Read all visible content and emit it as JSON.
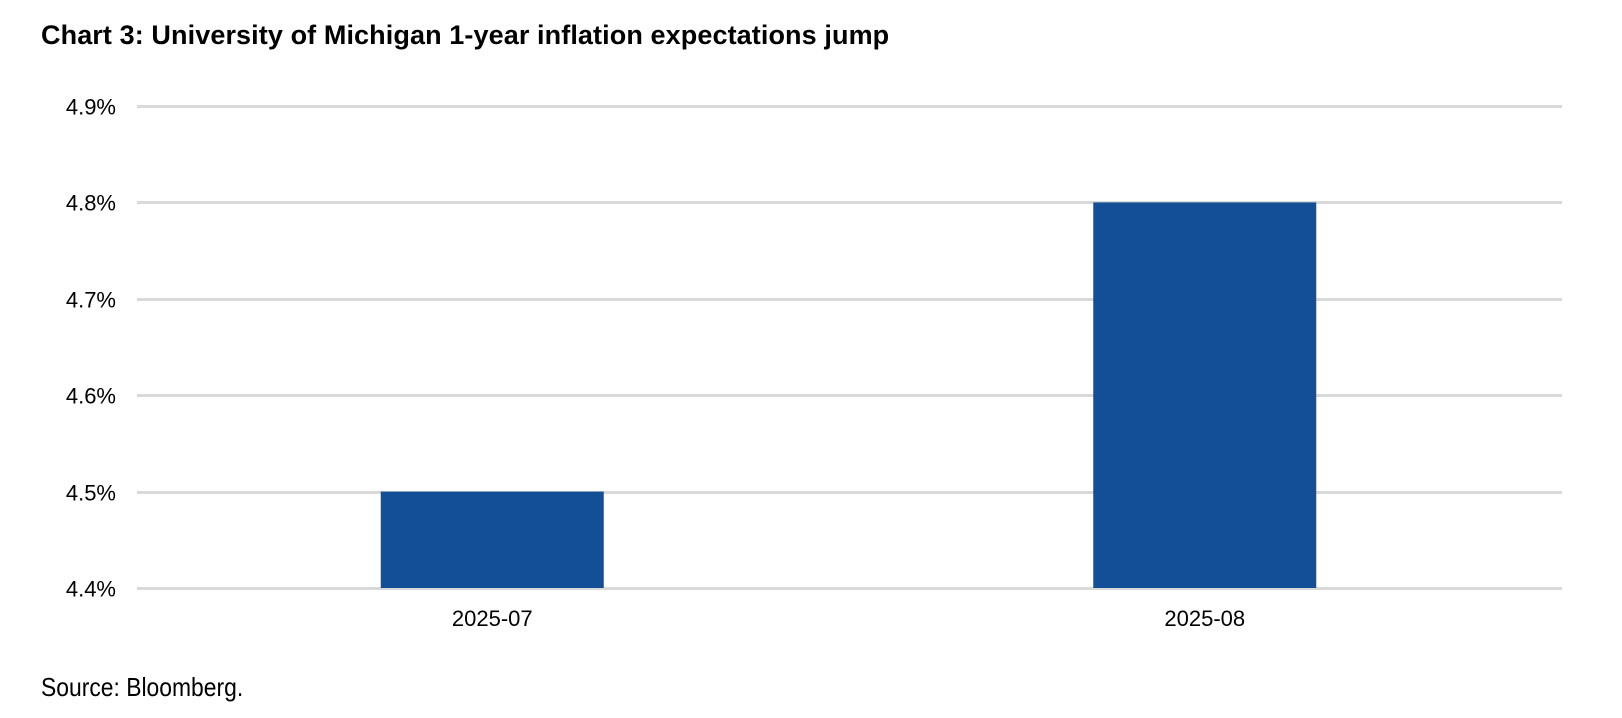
{
  "chart_data": {
    "type": "bar",
    "title": "Chart 3: University of Michigan 1-year inflation expectations jump",
    "categories": [
      "2025-07",
      "2025-08"
    ],
    "values": [
      4.5,
      4.8
    ],
    "ylim": [
      4.4,
      4.9
    ],
    "yticks": [
      "4.4%",
      "4.5%",
      "4.6%",
      "4.7%",
      "4.8%",
      "4.9%"
    ],
    "ytick_values": [
      4.4,
      4.5,
      4.6,
      4.7,
      4.8,
      4.9
    ],
    "xlabel": "",
    "ylabel": "",
    "grid": true,
    "legend": "none",
    "bar_color": "#124F96",
    "grid_color": "#D9D9D9"
  },
  "source": "Source: Bloomberg."
}
